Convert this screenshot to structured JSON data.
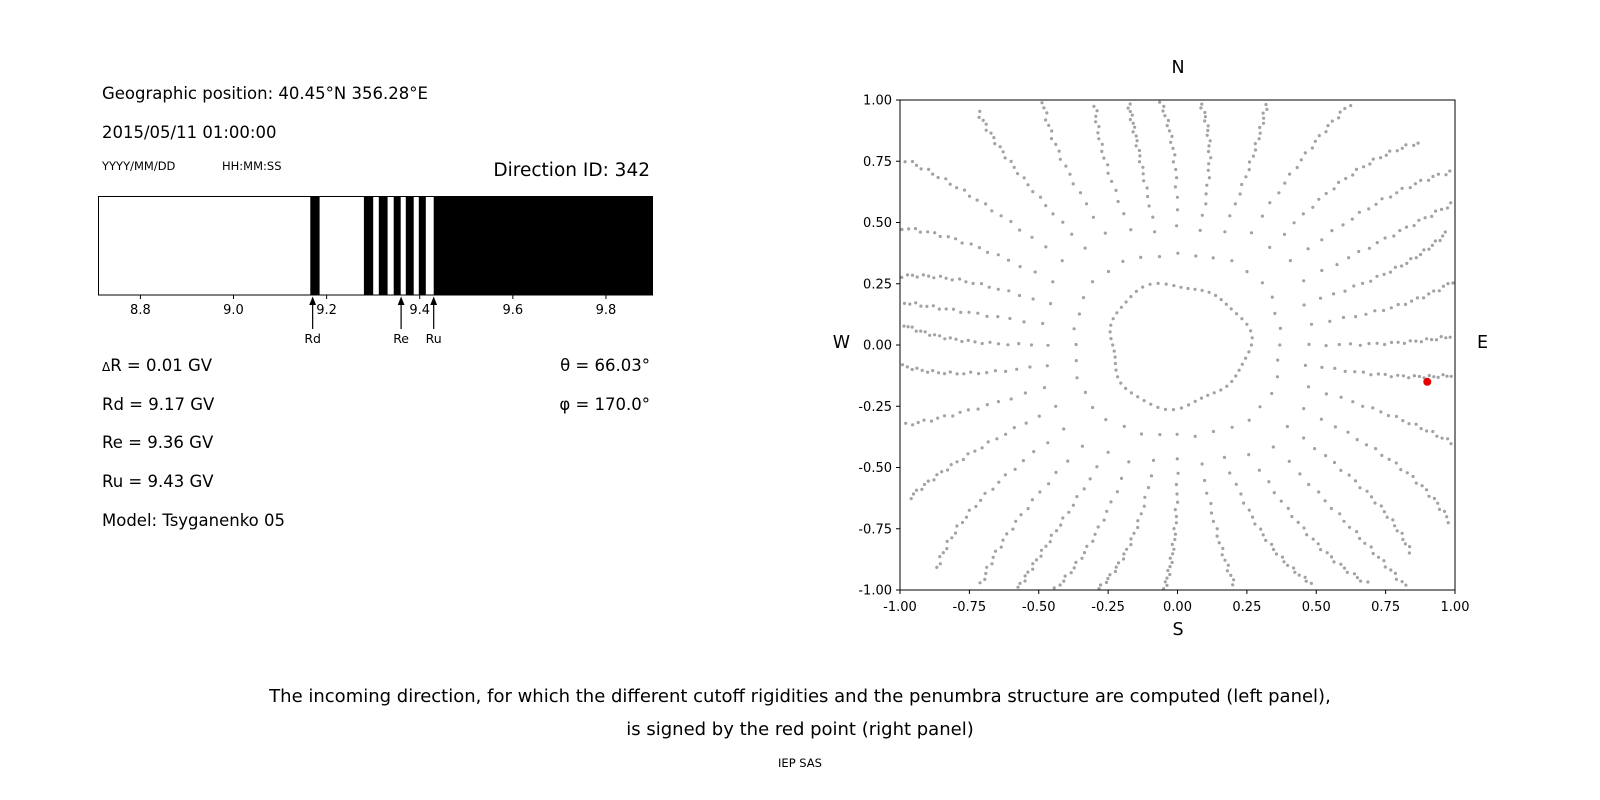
{
  "header": {
    "geographic_position": "Geographic position: 40.45°N 356.28°E",
    "datetime": "2015/05/11 01:00:00",
    "date_format_hint": "YYYY/MM/DD",
    "time_format_hint": "HH:MM:SS",
    "direction_id": "Direction ID: 342"
  },
  "values": {
    "delta_symbol": "Δ",
    "delta_r_rest": "R = 0.01 GV",
    "rd": "Rd = 9.17 GV",
    "re": "Re = 9.36 GV",
    "ru": "Ru = 9.43 GV",
    "model": "Model: Tsyganenko 05",
    "theta": "θ = 66.03°",
    "phi": "φ = 170.0°"
  },
  "compass": {
    "north": "N",
    "south": "S",
    "west": "W",
    "east": "E"
  },
  "caption": {
    "line1": "The incoming direction, for which the different cutoff rigidities and the penumbra structure are computed (left panel),",
    "line2": "is signed by the red point (right panel)",
    "credit": "IEP SAS"
  },
  "colors": {
    "band": "#000000",
    "frame": "#000000",
    "dot": "#888888",
    "red_point": "#e60000"
  },
  "chart_data": [
    {
      "type": "bar",
      "title": "penumbra structure",
      "x_range": [
        8.71,
        9.9
      ],
      "x_ticks": [
        8.8,
        9.0,
        9.2,
        9.4,
        9.6,
        9.8
      ],
      "forbidden_bands_gv": [
        [
          9.165,
          9.185
        ],
        [
          9.28,
          9.3
        ],
        [
          9.312,
          9.331
        ],
        [
          9.344,
          9.359
        ],
        [
          9.37,
          9.387
        ],
        [
          9.398,
          9.413
        ],
        [
          9.43,
          9.9
        ]
      ],
      "markers": [
        {
          "label": "Rd",
          "value": 9.17
        },
        {
          "label": "Re",
          "value": 9.36
        },
        {
          "label": "Ru",
          "value": 9.43
        }
      ]
    },
    {
      "type": "scatter",
      "x_range": [
        -1,
        1
      ],
      "y_range": [
        -1,
        1
      ],
      "x_ticks": [
        -1.0,
        -0.75,
        -0.5,
        -0.25,
        0.0,
        0.25,
        0.5,
        0.75,
        1.0
      ],
      "y_ticks": [
        -1.0,
        -0.75,
        -0.5,
        -0.25,
        0.0,
        0.25,
        0.5,
        0.75,
        1.0
      ],
      "red_point": [
        0.9,
        -0.15
      ],
      "pattern": {
        "spokes": 36,
        "dots_per_spoke": 24,
        "r_start": 0.27,
        "r_end_base": 1.04,
        "r_end_diag_boost": 0.22,
        "r_end_wobble": 0.05,
        "radial_power": 0.45,
        "curvature_rad": 0.12,
        "ring_points": 58,
        "ring_radius": 0.25,
        "clip": 0.995
      }
    }
  ]
}
